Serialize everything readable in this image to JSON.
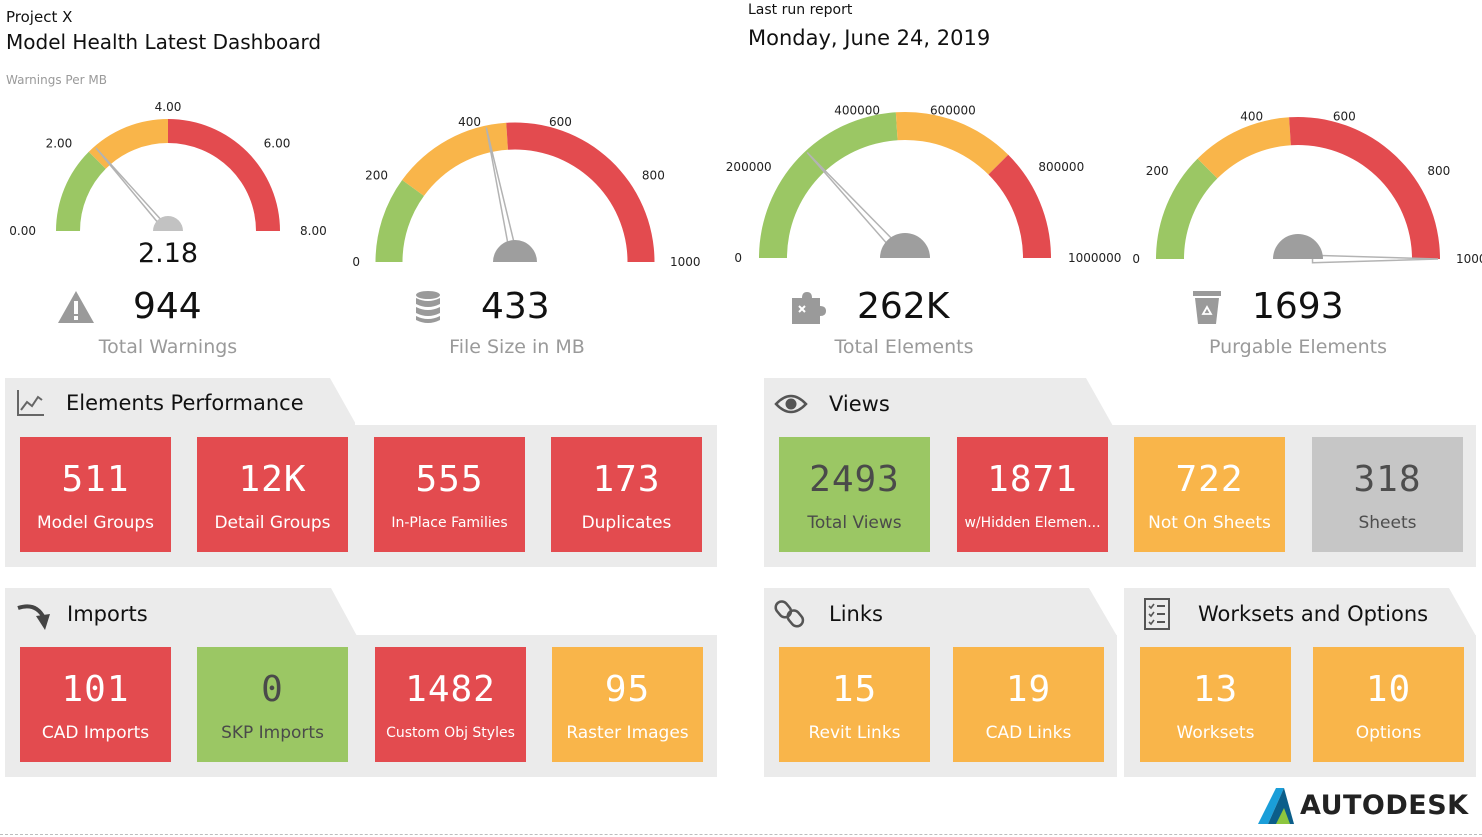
{
  "header": {
    "project": "Project X",
    "dashboard": "Model Health Latest Dashboard",
    "warnings_per_mb": "Warnings Per MB",
    "last_run_label": "Last run report",
    "last_run_date": "Monday, June 24, 2019"
  },
  "colors": {
    "red": "#e34b4f",
    "green": "#9bc764",
    "orange": "#f9b54a",
    "gray": "#c6c6c6",
    "needle": "#b3b3b3"
  },
  "gauges": [
    {
      "name": "warnings-per-mb",
      "ticks": [
        "0.00",
        "2.00",
        "4.00",
        "6.00",
        "8.00"
      ],
      "min": 0,
      "max": 8,
      "value": 2.18,
      "value_text": "2.18",
      "bands": [
        2,
        4,
        8
      ]
    },
    {
      "name": "file-size",
      "ticks": [
        "0",
        "200",
        "400",
        "600",
        "800",
        "1000"
      ],
      "min": 0,
      "max": 1000,
      "value": 433,
      "value_text": "",
      "bands": [
        200,
        480,
        1000
      ]
    },
    {
      "name": "total-elements",
      "ticks": [
        "0",
        "200000",
        "400000",
        "600000",
        "800000",
        "1000000"
      ],
      "min": 0,
      "max": 1000000,
      "value": 262000,
      "value_text": "",
      "bands": [
        480000,
        750000,
        1000000
      ]
    },
    {
      "name": "purgable-elements",
      "ticks": [
        "0",
        "200",
        "400",
        "600",
        "800",
        "1000"
      ],
      "min": 0,
      "max": 1000,
      "value": 1000,
      "value_text": "",
      "bands": [
        250,
        480,
        1000
      ]
    }
  ],
  "kpis": [
    {
      "icon": "warning-icon",
      "value": "944",
      "label": "Total Warnings"
    },
    {
      "icon": "database-icon",
      "value": "433",
      "label": "File Size in MB"
    },
    {
      "icon": "puzzle-icon",
      "value": "262K",
      "label": "Total Elements"
    },
    {
      "icon": "recycle-bin-icon",
      "value": "1693",
      "label": "Purgable Elements"
    }
  ],
  "panels": {
    "elements_performance": {
      "title": "Elements Performance",
      "icon": "line-chart-icon",
      "tiles": [
        {
          "value": "511",
          "label": "Model Groups",
          "color": "red"
        },
        {
          "value": "12K",
          "label": "Detail Groups",
          "color": "red"
        },
        {
          "value": "555",
          "label": "In-Place Families",
          "color": "red"
        },
        {
          "value": "173",
          "label": "Duplicates",
          "color": "red"
        }
      ]
    },
    "views": {
      "title": "Views",
      "icon": "eye-icon",
      "tiles": [
        {
          "value": "2493",
          "label": "Total Views",
          "color": "green"
        },
        {
          "value": "1871",
          "label": "w/Hidden Elemen...",
          "color": "red"
        },
        {
          "value": "722",
          "label": "Not On Sheets",
          "color": "orange"
        },
        {
          "value": "318",
          "label": "Sheets",
          "color": "gray"
        }
      ]
    },
    "imports": {
      "title": "Imports",
      "icon": "import-arrow-icon",
      "tiles": [
        {
          "value": "101",
          "label": "CAD Imports",
          "color": "red"
        },
        {
          "value": "0",
          "label": "SKP Imports",
          "color": "green"
        },
        {
          "value": "1482",
          "label": "Custom Obj Styles",
          "color": "red"
        },
        {
          "value": "95",
          "label": "Raster Images",
          "color": "orange"
        }
      ]
    },
    "links": {
      "title": "Links",
      "icon": "chain-link-icon",
      "tiles": [
        {
          "value": "15",
          "label": "Revit Links",
          "color": "orange"
        },
        {
          "value": "19",
          "label": "CAD Links",
          "color": "orange"
        }
      ]
    },
    "worksets": {
      "title": "Worksets and Options",
      "icon": "checklist-icon",
      "tiles": [
        {
          "value": "13",
          "label": "Worksets",
          "color": "orange"
        },
        {
          "value": "10",
          "label": "Options",
          "color": "orange"
        }
      ]
    }
  },
  "brand": {
    "name": "AUTODESK",
    "logo_icon": "autodesk-logo-icon"
  }
}
